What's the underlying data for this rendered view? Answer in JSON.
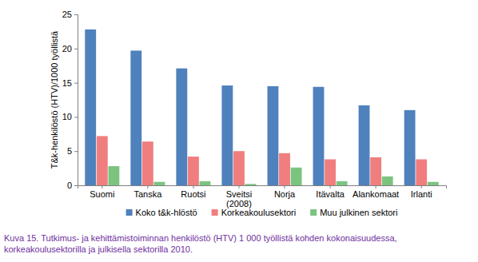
{
  "chart_data": {
    "type": "bar",
    "y_label": "T&k-henkilöstö (HTV)/1000 työllistä",
    "caption": [
      "Kuva 15. Tutkimus- ja kehittämistoiminnan henkilöstö (HTV) 1 000 työllistä kohden kokonaisuudessa,",
      "korkeakoulusektorilla ja julkisella sektorilla 2010."
    ],
    "categories": [
      "Suomi",
      "Tanska",
      "Ruotsi",
      "Sveitsi\n(2008)",
      "Norja",
      "Itävalta",
      "Alankomaat",
      "Irlanti"
    ],
    "series": [
      {
        "name": "Koko t&k-hlöstö",
        "color": "#4f81bd",
        "values": [
          22.8,
          19.7,
          17.1,
          14.6,
          14.5,
          14.4,
          11.7,
          11.0
        ]
      },
      {
        "name": "Korkeakoulusektori",
        "color": "#f07e7e",
        "values": [
          7.2,
          6.4,
          4.2,
          5.0,
          4.7,
          3.8,
          4.1,
          3.8
        ]
      },
      {
        "name": "Muu julkinen sektori",
        "color": "#7bc47f",
        "values": [
          2.8,
          0.5,
          0.6,
          0.2,
          2.6,
          0.6,
          1.3,
          0.5
        ]
      }
    ],
    "ylim": [
      0,
      25
    ],
    "yticks": [
      0,
      5,
      10,
      15,
      20,
      25
    ],
    "grid": false,
    "legend": "bottom"
  }
}
